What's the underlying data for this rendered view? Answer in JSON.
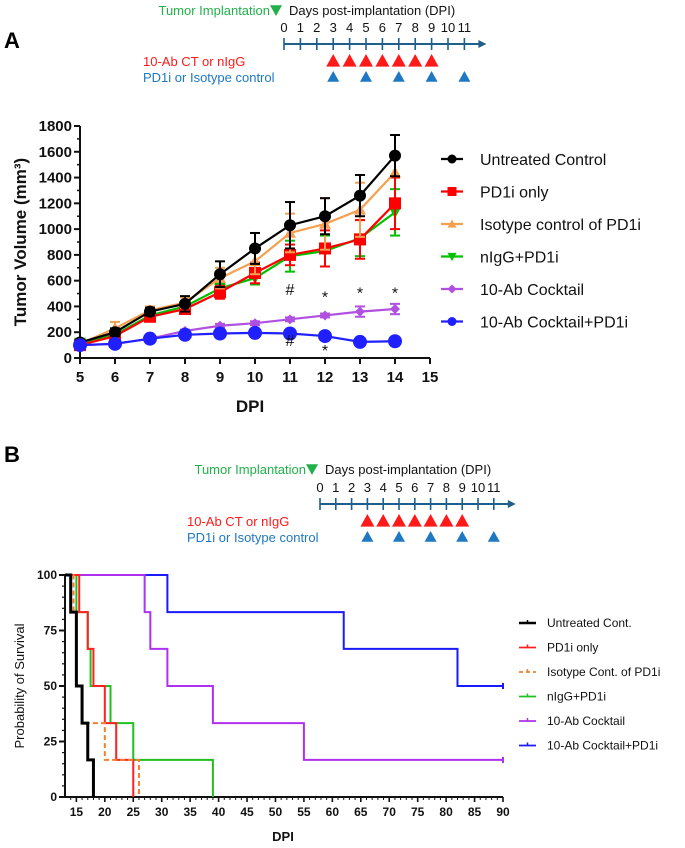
{
  "panels": {
    "A": {
      "letter": "A"
    },
    "B": {
      "letter": "B"
    }
  },
  "timeline": {
    "implant_label": "Tumor Implantation",
    "title": "Days post-implantation (DPI)",
    "days": [
      "0",
      "1",
      "2",
      "3",
      "4",
      "5",
      "6",
      "7",
      "8",
      "9",
      "10",
      "11"
    ],
    "row1_label": "10-Ab CT or nIgG",
    "row2_label": "PD1i or Isotype control",
    "row1_days": [
      3,
      4,
      5,
      6,
      7,
      8,
      9
    ],
    "row2_days": [
      3,
      5,
      7,
      9,
      11
    ],
    "colors": {
      "implant": "#22b04b",
      "axis": "#1f5f8b",
      "row1": "#ff1a1a",
      "row2": "#1e78c2",
      "title": "#111111"
    }
  },
  "chart_data": [
    {
      "type": "line",
      "title": "",
      "xlabel": "DPI",
      "ylabel": "Tumor Volume (mm³)",
      "xlim": [
        5,
        15
      ],
      "ylim": [
        0,
        1800
      ],
      "xticks": [
        5,
        6,
        7,
        8,
        9,
        10,
        11,
        12,
        13,
        14,
        15
      ],
      "yticks": [
        0,
        200,
        400,
        600,
        800,
        1000,
        1200,
        1400,
        1600,
        1800
      ],
      "grid": false,
      "legend_position": "right",
      "x": [
        5,
        6,
        7,
        8,
        9,
        10,
        11,
        12,
        13,
        14
      ],
      "series": [
        {
          "name": "Untreated Control",
          "color": "#000000",
          "marker": "circle",
          "values": [
            120,
            200,
            360,
            420,
            650,
            850,
            1030,
            1100,
            1260,
            1570
          ],
          "errors": [
            20,
            30,
            30,
            60,
            100,
            120,
            180,
            140,
            160,
            160
          ]
        },
        {
          "name": "PD1i only",
          "color": "#ff0000",
          "marker": "square",
          "values": [
            100,
            170,
            320,
            380,
            510,
            660,
            800,
            850,
            920,
            1200
          ],
          "errors": [
            15,
            25,
            25,
            30,
            50,
            80,
            80,
            140,
            150,
            200
          ]
        },
        {
          "name": "Isotype control of PD1i",
          "color": "#f5a050",
          "marker": "triangle-up",
          "values": [
            110,
            230,
            370,
            430,
            620,
            750,
            970,
            1040,
            1150,
            1440
          ],
          "errors": [
            15,
            50,
            30,
            40,
            80,
            100,
            150,
            200,
            210,
            0
          ]
        },
        {
          "name": "nIgG+PD1i",
          "color": "#00c000",
          "marker": "triangle-down",
          "values": [
            120,
            180,
            330,
            400,
            540,
            620,
            790,
            830,
            930,
            1130
          ],
          "errors": [
            15,
            20,
            20,
            30,
            40,
            50,
            120,
            120,
            140,
            180
          ]
        },
        {
          "name": "10-Ab Cocktail",
          "color": "#b050e0",
          "marker": "diamond",
          "values": [
            100,
            110,
            150,
            210,
            250,
            270,
            300,
            330,
            360,
            380
          ],
          "errors": [
            10,
            10,
            10,
            10,
            15,
            15,
            15,
            15,
            40,
            40
          ]
        },
        {
          "name": "10-Ab Cocktail+PD1i",
          "color": "#2020ff",
          "marker": "circle",
          "values": [
            100,
            110,
            150,
            180,
            190,
            195,
            190,
            170,
            125,
            130
          ],
          "errors": [
            10,
            10,
            15,
            15,
            15,
            15,
            15,
            20,
            15,
            15
          ]
        }
      ],
      "annotations": [
        {
          "x": 11,
          "y": 490,
          "text": "#"
        },
        {
          "x": 12,
          "y": 510,
          "text": "*"
        },
        {
          "x": 13,
          "y": 540,
          "text": "*"
        },
        {
          "x": 14,
          "y": 540,
          "text": "*"
        },
        {
          "x": 11,
          "y": 95,
          "text": "#"
        },
        {
          "x": 12,
          "y": 95,
          "text": "*"
        }
      ]
    },
    {
      "type": "line",
      "title": "",
      "xlabel": "DPI",
      "ylabel": "Probability of Survival",
      "xlim": [
        13,
        90
      ],
      "ylim": [
        0,
        100
      ],
      "xticks": [
        15,
        20,
        25,
        30,
        35,
        40,
        45,
        50,
        55,
        60,
        65,
        70,
        75,
        80,
        85,
        90
      ],
      "yticks": [
        0,
        25,
        50,
        75,
        100
      ],
      "grid": false,
      "legend_position": "right",
      "series": [
        {
          "name": "Untreated Cont.",
          "color": "#000000",
          "dash": false,
          "steps": [
            [
              13,
              100
            ],
            [
              14,
              83.3
            ],
            [
              15,
              50
            ],
            [
              16,
              33.3
            ],
            [
              17,
              16.7
            ],
            [
              18,
              0
            ]
          ]
        },
        {
          "name": "PD1i only",
          "color": "#ff2020",
          "dash": false,
          "steps": [
            [
              13,
              100
            ],
            [
              15.5,
              83.3
            ],
            [
              17,
              66.7
            ],
            [
              18,
              50
            ],
            [
              20,
              33.3
            ],
            [
              22,
              16.7
            ],
            [
              25,
              0
            ]
          ]
        },
        {
          "name": "Isotype Cont. of PD1i",
          "color": "#f08030",
          "dash": true,
          "steps": [
            [
              13,
              100
            ],
            [
              14.5,
              83.3
            ],
            [
              15,
              50
            ],
            [
              16,
              33.3
            ],
            [
              20,
              16.7
            ],
            [
              26,
              0
            ]
          ]
        },
        {
          "name": "nIgG+PD1i",
          "color": "#20c020",
          "dash": false,
          "steps": [
            [
              13,
              100
            ],
            [
              15,
              83.3
            ],
            [
              17,
              66.7
            ],
            [
              17.5,
              50
            ],
            [
              21,
              33.3
            ],
            [
              25,
              16.7
            ],
            [
              39,
              0
            ]
          ]
        },
        {
          "name": "10-Ab Cocktail",
          "color": "#b030f0",
          "dash": false,
          "steps": [
            [
              13,
              100
            ],
            [
              27,
              83.3
            ],
            [
              28,
              66.7
            ],
            [
              31,
              50
            ],
            [
              39,
              33.3
            ],
            [
              55,
              16.7
            ],
            [
              90,
              16.7
            ]
          ]
        },
        {
          "name": "10-Ab Cocktail+PD1i",
          "color": "#1a1aff",
          "dash": false,
          "steps": [
            [
              13,
              100
            ],
            [
              31,
              83.3
            ],
            [
              62,
              66.7
            ],
            [
              82,
              50
            ],
            [
              90,
              50
            ]
          ]
        }
      ]
    }
  ]
}
